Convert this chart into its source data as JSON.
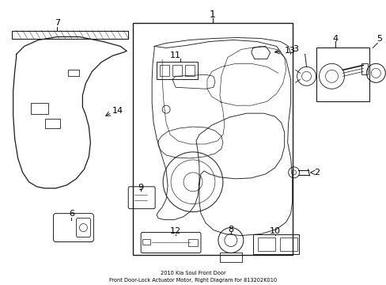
{
  "title": "2010 Kia Soul Front Door\nFront Door-Lock Actuator Motor, Right Diagram for 813202K010",
  "bg_color": "#ffffff",
  "line_color": "#1a1a1a",
  "text_color": "#000000",
  "fig_width": 4.89,
  "fig_height": 3.6,
  "dpi": 100
}
